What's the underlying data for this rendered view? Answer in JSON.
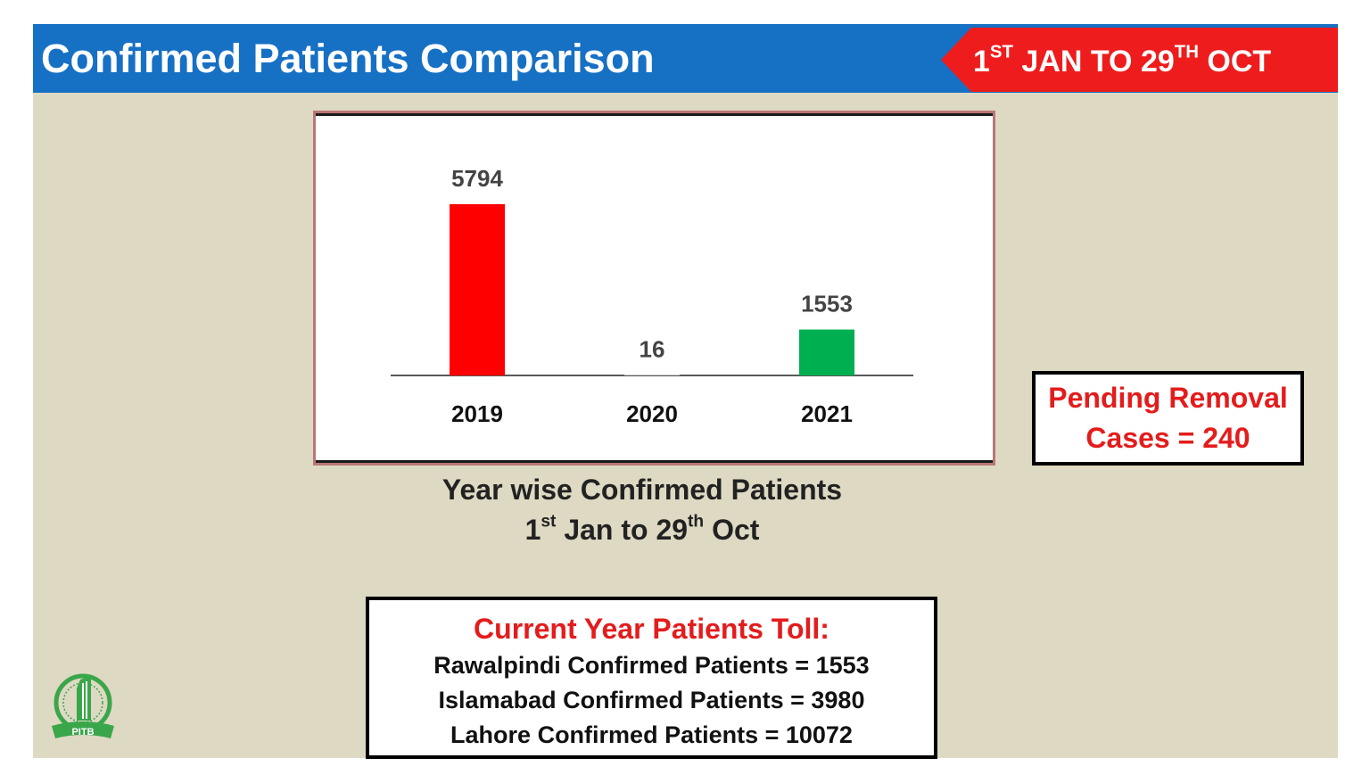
{
  "header": {
    "title": "Confirmed Patients Comparison",
    "date_range": {
      "prefix": "1",
      "prefix_sup": "ST",
      "mid": " JAN TO 29",
      "mid_sup": "TH",
      "suffix": " OCT"
    }
  },
  "chart_data": {
    "type": "bar",
    "categories": [
      "2019",
      "2020",
      "2021"
    ],
    "values": [
      5794,
      16,
      1553
    ],
    "colors": [
      "#ff0000",
      "#ffffff",
      "#00b050"
    ],
    "ylim": [
      0,
      5794
    ]
  },
  "caption": {
    "line1": "Year wise Confirmed Patients",
    "line2_prefix": "1",
    "line2_sup1": "st",
    "line2_mid": " Jan to 29",
    "line2_sup2": "th",
    "line2_suffix": " Oct"
  },
  "pending": {
    "line1": "Pending Removal",
    "line2": "Cases = 240"
  },
  "toll": {
    "title": "Current Year Patients Toll:",
    "lines": [
      "Rawalpindi Confirmed Patients = 1553",
      "Islamabad Confirmed Patients = 3980",
      "Lahore Confirmed Patients = 10072"
    ]
  },
  "logo": {
    "text": "PITB",
    "icon": "pitb-logo-icon",
    "color": "#3aa64a"
  },
  "colors": {
    "header_blue": "#1670c4",
    "tag_red": "#ee1c1c",
    "slide_bg": "#ded9c3",
    "text_red": "#e41c1c"
  }
}
